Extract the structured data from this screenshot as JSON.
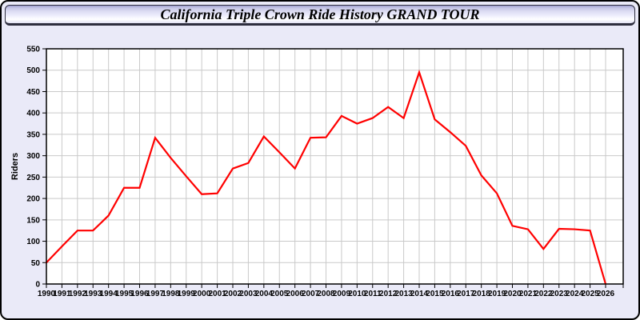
{
  "header": {
    "title": "California Triple Crown Ride History GRAND TOUR"
  },
  "colors": {
    "page_bg": "#eaeaf8",
    "plot_bg": "#ffffff",
    "grid": "#c9c9c9",
    "plot_border": "#000000",
    "line": "#ff0000",
    "tick_text": "#000000"
  },
  "chart_data": {
    "type": "line",
    "title": "California Triple Crown Ride History GRAND TOUR",
    "xlabel": "",
    "ylabel": "Riders",
    "categories": [
      "1990",
      "1991",
      "1992",
      "1993",
      "1994",
      "1995",
      "1996",
      "1997",
      "1998",
      "1999",
      "2000",
      "2001",
      "2002",
      "2003",
      "2004",
      "2005",
      "2006",
      "2007",
      "2008",
      "2009",
      "2010",
      "2011",
      "2012",
      "2013",
      "2014",
      "2015",
      "2016",
      "2017",
      "2018",
      "2019",
      "2020",
      "2021",
      "2022",
      "2023",
      "2024",
      "2025",
      "2026"
    ],
    "series": [
      {
        "name": "Riders",
        "color": "#ff0000",
        "values": [
          50,
          88,
          125,
          125,
          160,
          225,
          225,
          342,
          295,
          252,
          210,
          212,
          270,
          283,
          345,
          308,
          270,
          342,
          343,
          393,
          375,
          388,
          414,
          388,
          495,
          385,
          355,
          323,
          254,
          212,
          136,
          128,
          82,
          129,
          128,
          125,
          0
        ]
      }
    ],
    "ylim": [
      0,
      550
    ],
    "ytick_step": 50,
    "grid": true,
    "legend": false
  }
}
